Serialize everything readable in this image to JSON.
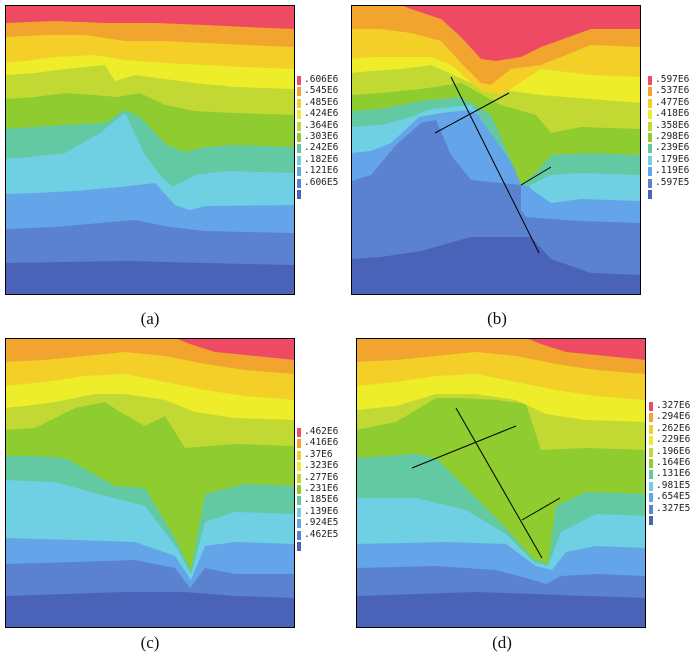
{
  "band_colors": [
    "#4a63b8",
    "#5a82cf",
    "#63a5e8",
    "#6ed0e2",
    "#63c9a3",
    "#8fcc2f",
    "#c2d934",
    "#eded2a",
    "#f4cf28",
    "#f2a52e",
    "#ee4a64"
  ],
  "panels": [
    {
      "id": "a",
      "caption": "(a)",
      "legend": [
        ".606E6",
        ".545E6",
        ".485E6",
        ".424E6",
        ".364E6",
        ".303E6",
        ".242E6",
        ".182E6",
        ".121E6",
        ".606E5"
      ]
    },
    {
      "id": "b",
      "caption": "(b)",
      "legend": [
        ".597E6",
        ".537E6",
        ".477E6",
        ".418E6",
        ".358E6",
        ".298E6",
        ".239E6",
        ".179E6",
        ".119E6",
        ".597E5"
      ]
    },
    {
      "id": "c",
      "caption": "(c)",
      "legend": [
        ".462E6",
        ".416E6",
        ".37E6",
        ".323E6",
        ".277E6",
        ".231E6",
        ".185E6",
        ".139E6",
        ".924E5",
        ".462E5"
      ]
    },
    {
      "id": "d",
      "caption": "(d)",
      "legend": [
        ".327E6",
        ".294E6",
        ".262E6",
        ".229E6",
        ".196E6",
        ".164E6",
        ".131E6",
        ".981E5",
        ".654E5",
        ".327E5"
      ]
    }
  ]
}
